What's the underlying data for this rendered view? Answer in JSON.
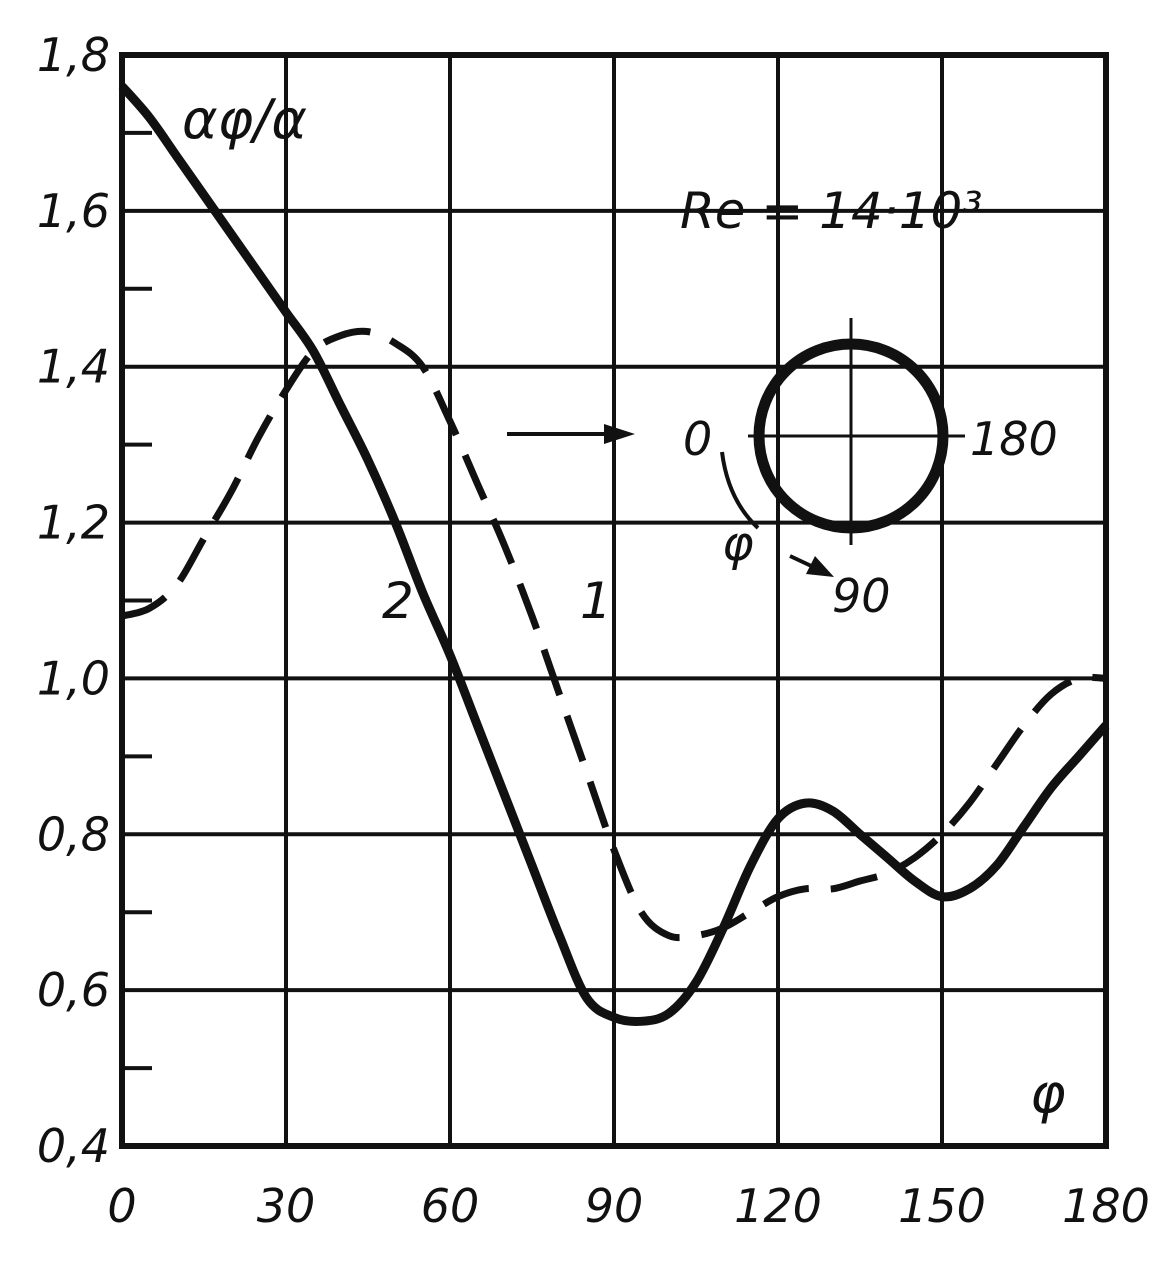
{
  "chart_data": {
    "type": "line",
    "ylabel": "αφ/α",
    "xlabel": "φ",
    "xlim": [
      0,
      180
    ],
    "ylim": [
      0.4,
      1.8
    ],
    "x_ticks": [
      0,
      30,
      60,
      90,
      120,
      150,
      180
    ],
    "x_tick_labels": [
      "0",
      "30",
      "60",
      "90",
      "120",
      "150",
      "180"
    ],
    "y_ticks": [
      0.4,
      0.6,
      0.8,
      1.0,
      1.2,
      1.4,
      1.6,
      1.8
    ],
    "y_tick_labels": [
      "0,4",
      "0,6",
      "0,8",
      "1,0",
      "1,2",
      "1,4",
      "1,6",
      "1,8"
    ],
    "grid": true,
    "annotations": {
      "reynolds": "Re = 14·10³",
      "curve1_label": "1",
      "curve2_label": "2",
      "inset_label_0": "0",
      "inset_label_90": "90",
      "inset_label_180": "180",
      "inset_phi": "φ"
    },
    "series": [
      {
        "name": "1",
        "style": "dashed",
        "x": [
          0,
          5,
          10,
          15,
          20,
          25,
          30,
          35,
          40,
          45,
          50,
          55,
          60,
          65,
          70,
          75,
          80,
          85,
          90,
          95,
          100,
          105,
          110,
          115,
          120,
          125,
          130,
          135,
          140,
          145,
          150,
          155,
          160,
          165,
          170,
          175,
          180
        ],
        "y": [
          1.08,
          1.09,
          1.12,
          1.18,
          1.24,
          1.31,
          1.37,
          1.42,
          1.44,
          1.445,
          1.43,
          1.4,
          1.33,
          1.25,
          1.17,
          1.08,
          0.98,
          0.88,
          0.78,
          0.7,
          0.67,
          0.67,
          0.68,
          0.7,
          0.72,
          0.73,
          0.73,
          0.74,
          0.75,
          0.77,
          0.8,
          0.84,
          0.89,
          0.94,
          0.98,
          1.0,
          1.0
        ]
      },
      {
        "name": "2",
        "style": "solid",
        "x": [
          0,
          5,
          10,
          15,
          20,
          25,
          30,
          35,
          40,
          45,
          50,
          55,
          60,
          65,
          70,
          75,
          80,
          85,
          90,
          95,
          100,
          105,
          110,
          115,
          120,
          125,
          130,
          135,
          140,
          145,
          150,
          155,
          160,
          165,
          170,
          175,
          180
        ],
        "y": [
          1.76,
          1.72,
          1.67,
          1.62,
          1.57,
          1.52,
          1.47,
          1.42,
          1.35,
          1.28,
          1.2,
          1.11,
          1.03,
          0.94,
          0.85,
          0.76,
          0.67,
          0.59,
          0.565,
          0.56,
          0.57,
          0.61,
          0.68,
          0.76,
          0.82,
          0.84,
          0.83,
          0.8,
          0.77,
          0.74,
          0.72,
          0.73,
          0.76,
          0.81,
          0.86,
          0.9,
          0.94
        ]
      }
    ],
    "colors": {
      "ink": "#111111",
      "background": "#ffffff"
    }
  }
}
